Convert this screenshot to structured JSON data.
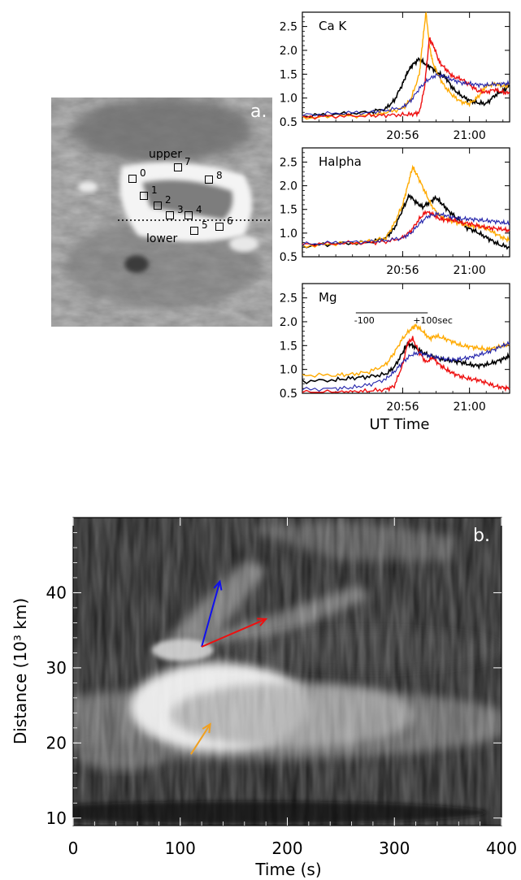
{
  "panel_a": {
    "label": "a.",
    "upper_label": "upper",
    "lower_label": "lower",
    "box_labels": [
      "0",
      "1",
      "2",
      "3",
      "4",
      "5",
      "6",
      "7",
      "8"
    ]
  },
  "chart_data": [
    {
      "type": "line",
      "panel_title": "Ca K",
      "xlabel": "",
      "x_ticks": [
        "20:56",
        "21:00"
      ],
      "xlim_minutes_after_2050": [
        0,
        12.4
      ],
      "ylim": [
        0.5,
        2.8
      ],
      "y_ticks": [
        "0.5",
        "1.0",
        "1.5",
        "2.0",
        "2.5"
      ],
      "series": [
        {
          "color": "#000000",
          "width": 1.6,
          "points": [
            [
              0,
              0.62
            ],
            [
              2,
              0.66
            ],
            [
              4,
              0.7
            ],
            [
              5,
              0.78
            ],
            [
              5.5,
              0.95
            ],
            [
              6,
              1.3
            ],
            [
              6.3,
              1.55
            ],
            [
              6.6,
              1.7
            ],
            [
              7,
              1.82
            ],
            [
              7.4,
              1.7
            ],
            [
              7.8,
              1.62
            ],
            [
              8.2,
              1.5
            ],
            [
              8.6,
              1.42
            ],
            [
              9,
              1.2
            ],
            [
              9.5,
              1.05
            ],
            [
              10,
              0.95
            ],
            [
              10.5,
              0.9
            ],
            [
              11,
              0.88
            ],
            [
              11.5,
              1.05
            ],
            [
              12,
              1.15
            ],
            [
              12.4,
              1.25
            ]
          ]
        },
        {
          "color": "#ffaa00",
          "width": 1.4,
          "points": [
            [
              0,
              0.58
            ],
            [
              2,
              0.62
            ],
            [
              4,
              0.64
            ],
            [
              5,
              0.7
            ],
            [
              6,
              0.78
            ],
            [
              6.5,
              0.98
            ],
            [
              7,
              1.5
            ],
            [
              7.2,
              2.2
            ],
            [
              7.4,
              2.8
            ],
            [
              7.6,
              2.1
            ],
            [
              7.8,
              1.75
            ],
            [
              8.1,
              1.5
            ],
            [
              8.5,
              1.25
            ],
            [
              9,
              1.05
            ],
            [
              9.5,
              0.92
            ],
            [
              10,
              0.88
            ],
            [
              10.5,
              1.02
            ],
            [
              11,
              1.25
            ],
            [
              11.5,
              1.3
            ],
            [
              12,
              1.25
            ],
            [
              12.4,
              1.28
            ]
          ]
        },
        {
          "color": "#ee1111",
          "width": 1.4,
          "points": [
            [
              0,
              0.6
            ],
            [
              2,
              0.62
            ],
            [
              4,
              0.63
            ],
            [
              5,
              0.64
            ],
            [
              6,
              0.65
            ],
            [
              6.6,
              0.66
            ],
            [
              7,
              0.7
            ],
            [
              7.3,
              1.2
            ],
            [
              7.6,
              2.25
            ],
            [
              7.9,
              2.05
            ],
            [
              8.2,
              1.75
            ],
            [
              8.6,
              1.6
            ],
            [
              9,
              1.45
            ],
            [
              9.5,
              1.4
            ],
            [
              10,
              1.28
            ],
            [
              10.5,
              1.15
            ],
            [
              11,
              1.12
            ],
            [
              11.5,
              1.18
            ],
            [
              12,
              1.12
            ],
            [
              12.4,
              1.1
            ]
          ]
        },
        {
          "color": "#2222aa",
          "width": 1.1,
          "points": [
            [
              0,
              0.64
            ],
            [
              2,
              0.68
            ],
            [
              4,
              0.7
            ],
            [
              5,
              0.74
            ],
            [
              6,
              0.8
            ],
            [
              6.5,
              0.95
            ],
            [
              7,
              1.2
            ],
            [
              7.5,
              1.38
            ],
            [
              8,
              1.48
            ],
            [
              8.5,
              1.45
            ],
            [
              9,
              1.38
            ],
            [
              9.5,
              1.32
            ],
            [
              10,
              1.3
            ],
            [
              10.5,
              1.28
            ],
            [
              11,
              1.27
            ],
            [
              11.5,
              1.29
            ],
            [
              12,
              1.3
            ],
            [
              12.4,
              1.3
            ]
          ]
        }
      ]
    },
    {
      "type": "line",
      "panel_title": "Halpha",
      "xlabel": "",
      "x_ticks": [
        "20:56",
        "21:00"
      ],
      "xlim_minutes_after_2050": [
        0,
        12.4
      ],
      "ylim": [
        0.5,
        2.8
      ],
      "y_ticks": [
        "0.5",
        "1.0",
        "1.5",
        "2.0",
        "2.5"
      ],
      "series": [
        {
          "color": "#000000",
          "width": 1.6,
          "points": [
            [
              0,
              0.72
            ],
            [
              2,
              0.78
            ],
            [
              4,
              0.8
            ],
            [
              5,
              0.9
            ],
            [
              5.5,
              1.1
            ],
            [
              6,
              1.5
            ],
            [
              6.4,
              1.8
            ],
            [
              6.8,
              1.65
            ],
            [
              7.2,
              1.55
            ],
            [
              7.6,
              1.65
            ],
            [
              8,
              1.75
            ],
            [
              8.4,
              1.6
            ],
            [
              8.8,
              1.45
            ],
            [
              9.3,
              1.3
            ],
            [
              9.8,
              1.12
            ],
            [
              10.3,
              1.05
            ],
            [
              10.8,
              0.95
            ],
            [
              11.3,
              0.85
            ],
            [
              11.8,
              0.75
            ],
            [
              12.4,
              0.7
            ]
          ]
        },
        {
          "color": "#ffaa00",
          "width": 1.4,
          "points": [
            [
              0,
              0.72
            ],
            [
              2,
              0.78
            ],
            [
              4,
              0.82
            ],
            [
              5,
              0.9
            ],
            [
              5.5,
              1.2
            ],
            [
              6,
              1.6
            ],
            [
              6.3,
              2.0
            ],
            [
              6.6,
              2.4
            ],
            [
              6.9,
              2.2
            ],
            [
              7.3,
              1.9
            ],
            [
              7.7,
              1.6
            ],
            [
              8.1,
              1.4
            ],
            [
              8.5,
              1.3
            ],
            [
              9,
              1.25
            ],
            [
              9.5,
              1.2
            ],
            [
              10,
              1.15
            ],
            [
              10.5,
              1.15
            ],
            [
              11,
              1.1
            ],
            [
              11.5,
              1.0
            ],
            [
              12,
              0.9
            ],
            [
              12.4,
              0.85
            ]
          ]
        },
        {
          "color": "#ee1111",
          "width": 1.4,
          "points": [
            [
              0,
              0.76
            ],
            [
              2,
              0.78
            ],
            [
              4,
              0.8
            ],
            [
              5,
              0.82
            ],
            [
              6,
              0.9
            ],
            [
              6.5,
              1.05
            ],
            [
              7,
              1.3
            ],
            [
              7.4,
              1.45
            ],
            [
              7.8,
              1.4
            ],
            [
              8.2,
              1.3
            ],
            [
              8.6,
              1.28
            ],
            [
              9,
              1.28
            ],
            [
              9.5,
              1.22
            ],
            [
              10,
              1.2
            ],
            [
              10.5,
              1.15
            ],
            [
              11,
              1.12
            ],
            [
              11.5,
              1.1
            ],
            [
              12,
              1.08
            ],
            [
              12.4,
              1.05
            ]
          ]
        },
        {
          "color": "#2222aa",
          "width": 1.1,
          "points": [
            [
              0,
              0.76
            ],
            [
              2,
              0.8
            ],
            [
              4,
              0.82
            ],
            [
              5,
              0.84
            ],
            [
              6,
              0.9
            ],
            [
              6.5,
              1.0
            ],
            [
              7,
              1.2
            ],
            [
              7.5,
              1.35
            ],
            [
              8,
              1.4
            ],
            [
              8.5,
              1.38
            ],
            [
              9,
              1.33
            ],
            [
              9.5,
              1.3
            ],
            [
              10,
              1.3
            ],
            [
              10.5,
              1.28
            ],
            [
              11,
              1.26
            ],
            [
              11.5,
              1.25
            ],
            [
              12,
              1.22
            ],
            [
              12.4,
              1.2
            ]
          ]
        }
      ]
    },
    {
      "type": "line",
      "panel_title": "Mg",
      "xlabel": "UT Time",
      "x_ticks": [
        "20:56",
        "21:00"
      ],
      "xlim_minutes_after_2050": [
        0,
        12.4
      ],
      "ylim": [
        0.5,
        2.8
      ],
      "y_ticks": [
        "0.5",
        "1.0",
        "1.5",
        "2.0",
        "2.5"
      ],
      "scale_bar": {
        "left_label": "-100",
        "right_label": "+100sec",
        "range_minutes": [
          3.2,
          7.5
        ]
      },
      "series": [
        {
          "color": "#000000",
          "width": 1.6,
          "points": [
            [
              0,
              0.75
            ],
            [
              2,
              0.78
            ],
            [
              3,
              0.82
            ],
            [
              4,
              0.85
            ],
            [
              5,
              0.9
            ],
            [
              5.5,
              1.05
            ],
            [
              6,
              1.35
            ],
            [
              6.3,
              1.55
            ],
            [
              6.6,
              1.5
            ],
            [
              7,
              1.4
            ],
            [
              7.5,
              1.3
            ],
            [
              8,
              1.25
            ],
            [
              8.5,
              1.2
            ],
            [
              9,
              1.18
            ],
            [
              9.5,
              1.15
            ],
            [
              10,
              1.1
            ],
            [
              10.5,
              1.08
            ],
            [
              11,
              1.1
            ],
            [
              11.5,
              1.15
            ],
            [
              12,
              1.22
            ],
            [
              12.4,
              1.28
            ]
          ]
        },
        {
          "color": "#ffaa00",
          "width": 1.4,
          "points": [
            [
              0,
              0.88
            ],
            [
              2,
              0.88
            ],
            [
              3,
              0.9
            ],
            [
              4,
              0.95
            ],
            [
              5,
              1.1
            ],
            [
              5.5,
              1.35
            ],
            [
              6,
              1.65
            ],
            [
              6.5,
              1.85
            ],
            [
              6.8,
              1.92
            ],
            [
              7.2,
              1.8
            ],
            [
              7.6,
              1.65
            ],
            [
              8,
              1.7
            ],
            [
              8.5,
              1.65
            ],
            [
              9,
              1.58
            ],
            [
              9.5,
              1.5
            ],
            [
              10,
              1.48
            ],
            [
              10.5,
              1.45
            ],
            [
              11,
              1.42
            ],
            [
              11.5,
              1.45
            ],
            [
              12,
              1.5
            ],
            [
              12.4,
              1.52
            ]
          ]
        },
        {
          "color": "#ee1111",
          "width": 1.4,
          "points": [
            [
              0,
              0.52
            ],
            [
              2,
              0.52
            ],
            [
              3,
              0.53
            ],
            [
              4,
              0.55
            ],
            [
              5,
              0.58
            ],
            [
              5.5,
              0.65
            ],
            [
              6,
              1.1
            ],
            [
              6.3,
              1.55
            ],
            [
              6.6,
              1.65
            ],
            [
              7,
              1.35
            ],
            [
              7.4,
              1.15
            ],
            [
              7.8,
              1.25
            ],
            [
              8.2,
              1.1
            ],
            [
              8.6,
              1.0
            ],
            [
              9,
              0.92
            ],
            [
              9.5,
              0.85
            ],
            [
              10,
              0.8
            ],
            [
              10.5,
              0.78
            ],
            [
              11,
              0.72
            ],
            [
              11.5,
              0.65
            ],
            [
              12,
              0.62
            ],
            [
              12.4,
              0.6
            ]
          ]
        },
        {
          "color": "#2222aa",
          "width": 1.1,
          "points": [
            [
              0,
              0.58
            ],
            [
              2,
              0.6
            ],
            [
              3,
              0.62
            ],
            [
              4,
              0.68
            ],
            [
              5,
              0.8
            ],
            [
              5.5,
              0.95
            ],
            [
              6,
              1.15
            ],
            [
              6.5,
              1.3
            ],
            [
              7,
              1.35
            ],
            [
              7.5,
              1.3
            ],
            [
              8,
              1.25
            ],
            [
              8.5,
              1.22
            ],
            [
              9,
              1.2
            ],
            [
              9.5,
              1.22
            ],
            [
              10,
              1.25
            ],
            [
              10.5,
              1.3
            ],
            [
              11,
              1.35
            ],
            [
              11.5,
              1.42
            ],
            [
              12,
              1.5
            ],
            [
              12.4,
              1.55
            ]
          ]
        }
      ]
    },
    {
      "type": "heatmap",
      "panel_label": "b.",
      "xlabel": "Time (s)",
      "ylabel": "Distance (10³ km)",
      "xlim": [
        0,
        400
      ],
      "ylim": [
        9,
        50
      ],
      "x_ticks": [
        0,
        100,
        200,
        300,
        400
      ],
      "y_ticks": [
        10,
        20,
        30,
        40
      ],
      "arrows": [
        {
          "color": "#1010ee",
          "from": [
            120,
            32.8
          ],
          "to": [
            137,
            41.5
          ]
        },
        {
          "color": "#ee1010",
          "from": [
            120,
            32.8
          ],
          "to": [
            180,
            36.5
          ]
        },
        {
          "color": "#f0a020",
          "from": [
            110,
            18.5
          ],
          "to": [
            128,
            22.5
          ]
        }
      ]
    }
  ]
}
